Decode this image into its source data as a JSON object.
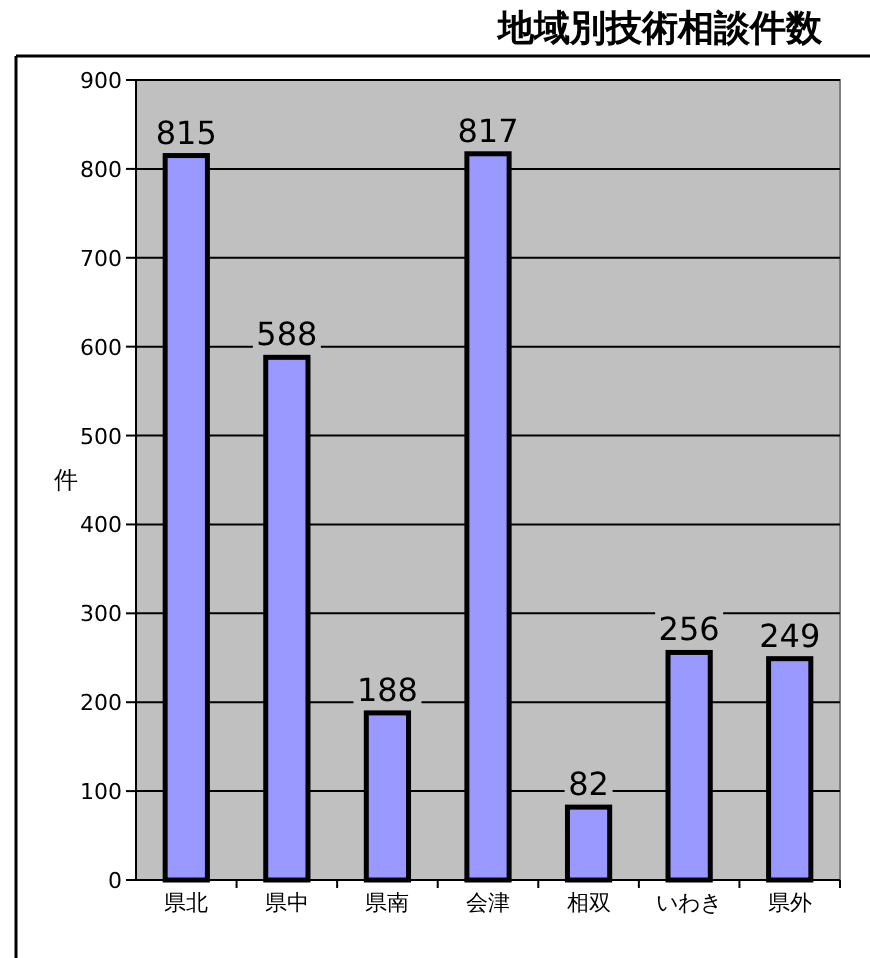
{
  "chart_data": {
    "type": "bar",
    "title": "地域別技術相談件数",
    "ylabel": "件",
    "categories": [
      "県北",
      "県中",
      "県南",
      "会津",
      "相双",
      "いわき",
      "県外"
    ],
    "values": [
      815,
      588,
      188,
      817,
      82,
      256,
      249
    ],
    "color": "#9999ff",
    "ylim": [
      0,
      900
    ],
    "yticks": [
      0,
      100,
      200,
      300,
      400,
      500,
      600,
      700,
      800,
      900
    ],
    "grid": "y",
    "data_labels": true
  }
}
